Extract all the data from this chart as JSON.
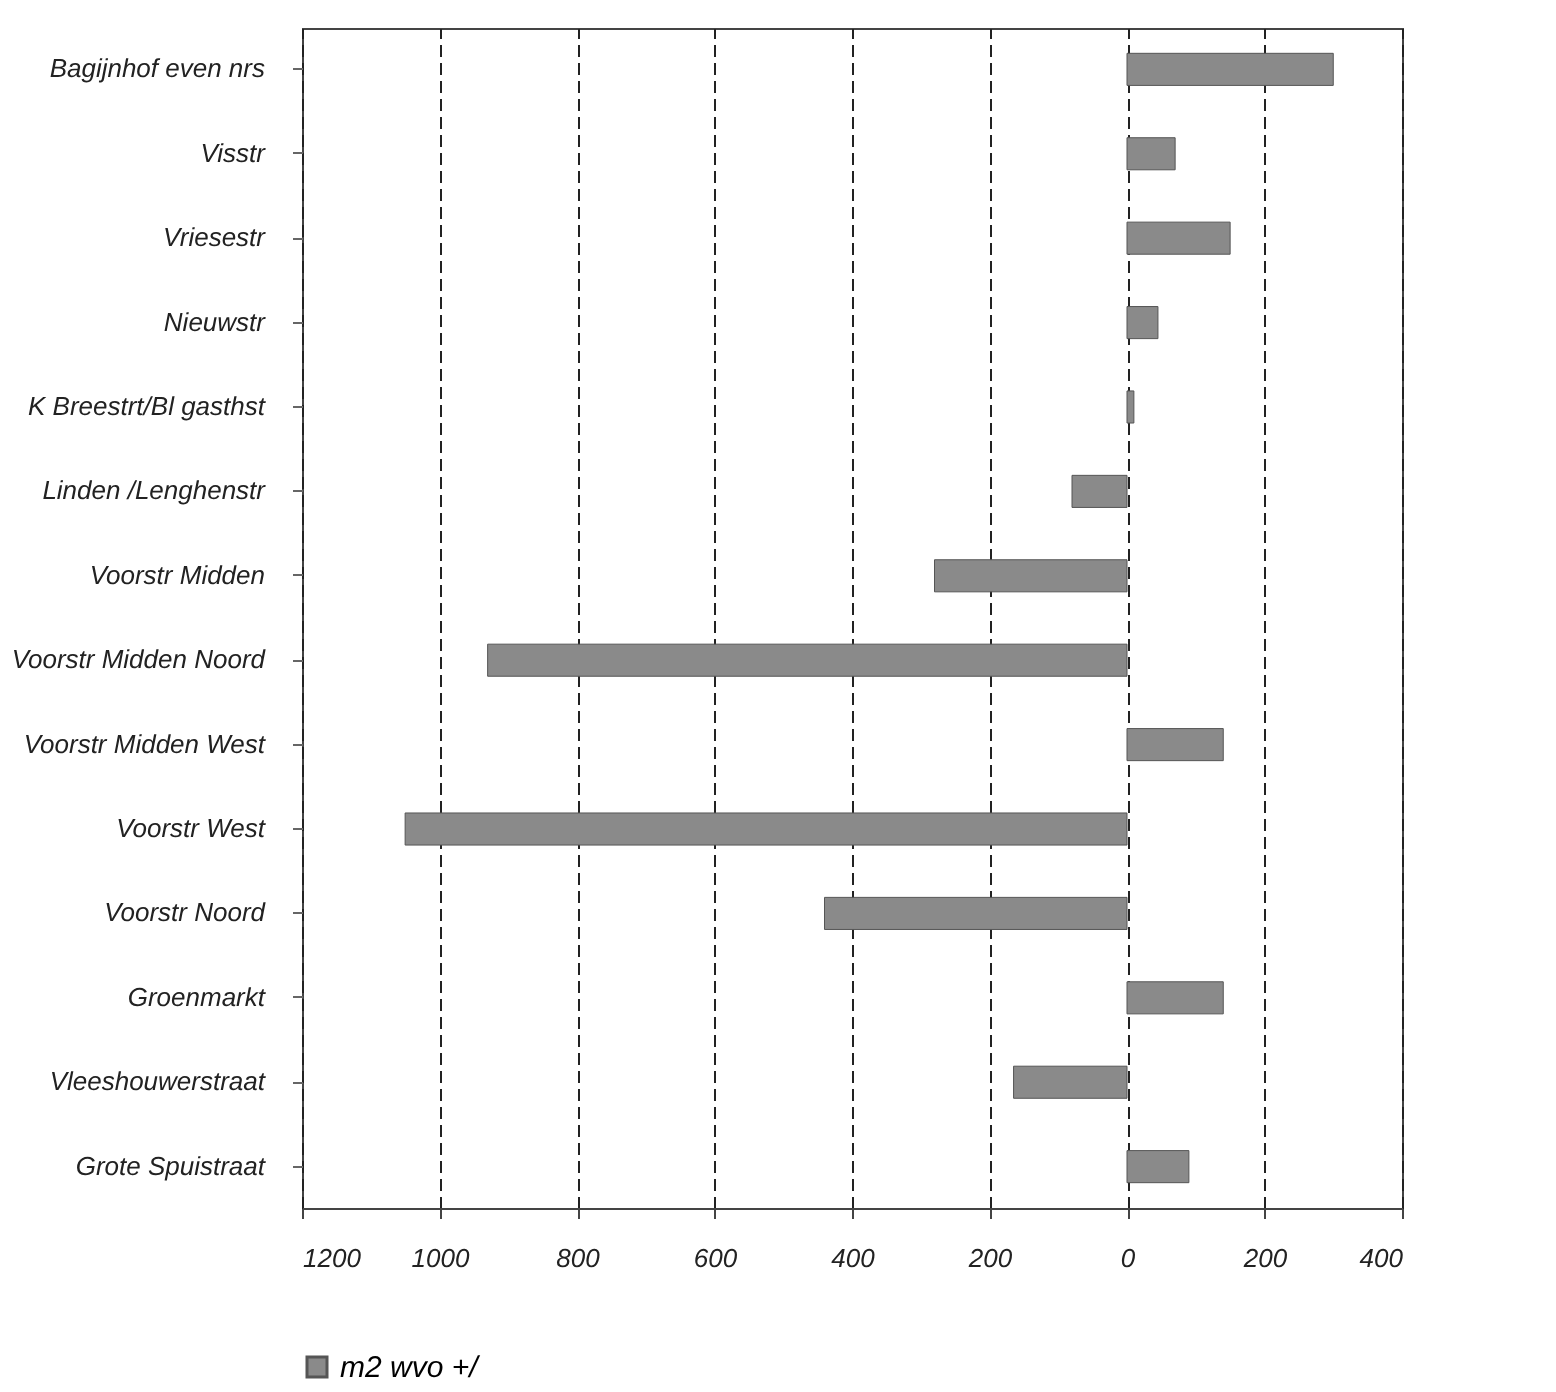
{
  "chart_data": {
    "type": "bar",
    "orientation": "horizontal",
    "categories": [
      "Bagijnhof even nrs",
      "Visstr",
      "Vriesestr",
      "Nieuwstr",
      "K Breestrt/Bl gasthst",
      "Linden /Lenghenstr",
      "Voorstr Midden",
      "Voorstr Midden Noord",
      "Voorstr Midden West",
      "Voorstr West",
      "Voorstr Noord",
      "Groenmarkt",
      "Vleeshouwerstraat",
      "Grote Spuistraat"
    ],
    "series": [
      {
        "name": "m2 wvo +/",
        "color": "#8a8a8a",
        "values": [
          300,
          70,
          150,
          45,
          10,
          -80,
          -280,
          -930,
          140,
          -1050,
          -440,
          140,
          -165,
          90
        ]
      }
    ],
    "xlim": [
      -1200,
      400
    ],
    "xticks": [
      {
        "value": -1200,
        "label": "1200"
      },
      {
        "value": -1000,
        "label": "1000"
      },
      {
        "value": -800,
        "label": "800"
      },
      {
        "value": -600,
        "label": "600"
      },
      {
        "value": -400,
        "label": "400"
      },
      {
        "value": -200,
        "label": "200"
      },
      0,
      200,
      400
    ],
    "grid": "x",
    "legend": "bottom"
  }
}
